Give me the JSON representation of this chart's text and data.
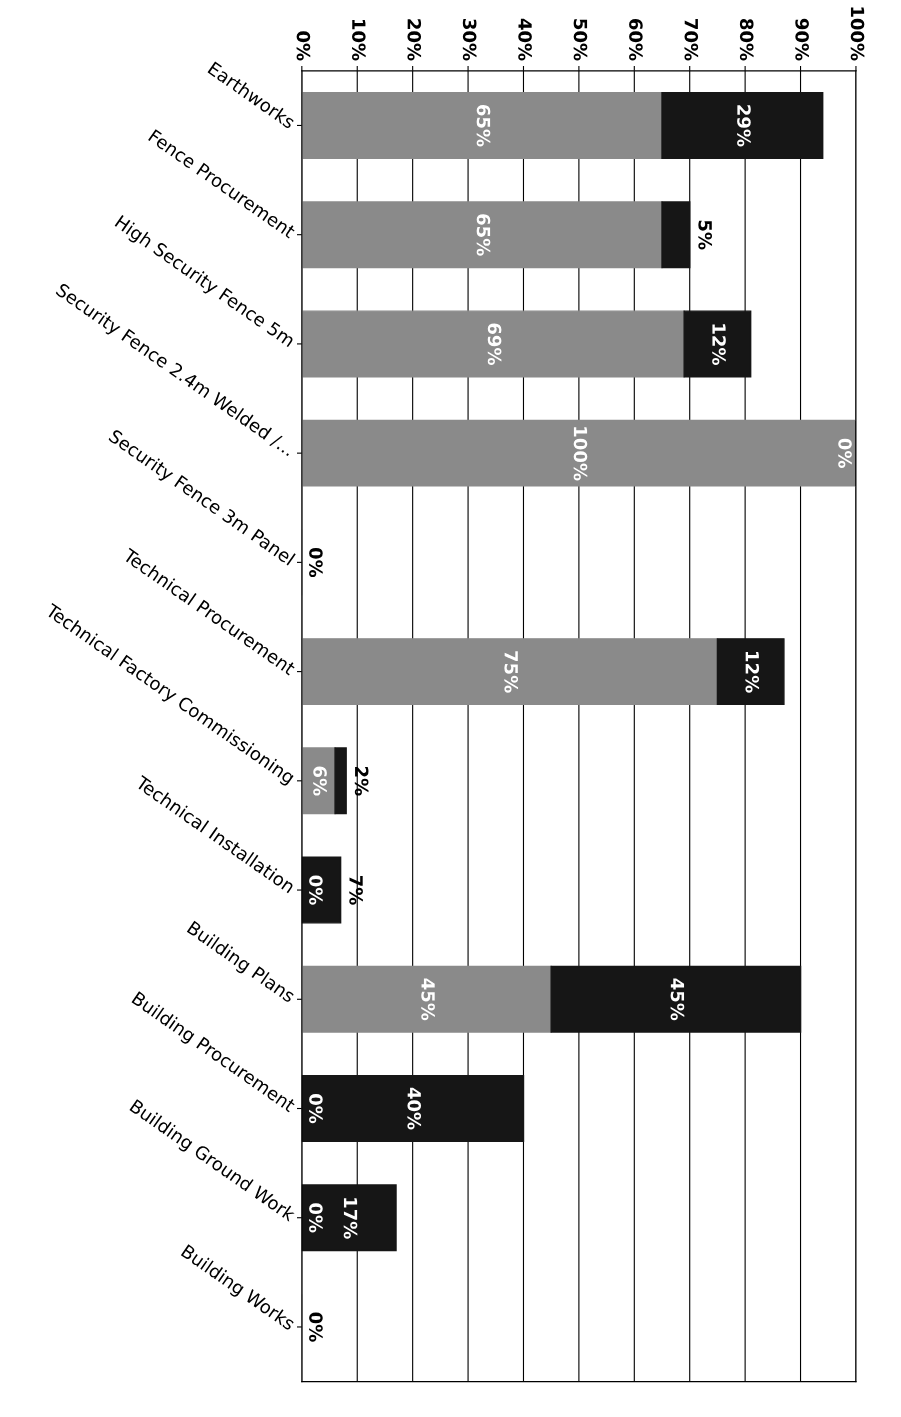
{
  "chart_data": {
    "type": "bar",
    "orientation": "horizontal",
    "stacked": true,
    "categories": [
      "Earthworks",
      "Fence Procurement",
      "High Security Fence 5m",
      "Security Fence 2.4m Welded /...",
      "Security Fence 3m Panel",
      "Technical Procurement",
      "Technical Factory Commissioning",
      "Technical Installation",
      "Building Plans",
      "Building Procurement",
      "Building Ground Work",
      "Building Works"
    ],
    "series": [
      {
        "color": "#8a8a8a",
        "values": [
          65,
          65,
          69,
          100,
          0,
          75,
          6,
          0,
          45,
          0,
          0,
          0
        ],
        "value_labels": [
          "65%",
          "65%",
          "69%",
          "100%",
          "0%",
          "75%",
          "6%",
          "0%",
          "45%",
          "0%",
          "0%",
          "0%"
        ]
      },
      {
        "color": "#161616",
        "values": [
          29,
          5,
          12,
          0,
          null,
          12,
          2,
          7,
          45,
          40,
          17,
          null
        ],
        "value_labels": [
          "29%",
          "5%",
          "12%",
          "0%",
          null,
          "12%",
          "2%",
          "7%",
          "45%",
          "40%",
          "17%",
          null
        ]
      }
    ],
    "xlim": [
      0,
      100
    ],
    "xticks": [
      {
        "value": 0,
        "label": "0%"
      },
      {
        "value": 10,
        "label": "10%"
      },
      {
        "value": 20,
        "label": "20%"
      },
      {
        "value": 30,
        "label": "30%"
      },
      {
        "value": 40,
        "label": "40%"
      },
      {
        "value": 50,
        "label": "50%"
      },
      {
        "value": 60,
        "label": "60%"
      },
      {
        "value": 70,
        "label": "70%"
      },
      {
        "value": 80,
        "label": "80%"
      },
      {
        "value": 90,
        "label": "90%"
      },
      {
        "value": 100,
        "label": "100%"
      }
    ],
    "grid": "x",
    "legend": false
  }
}
